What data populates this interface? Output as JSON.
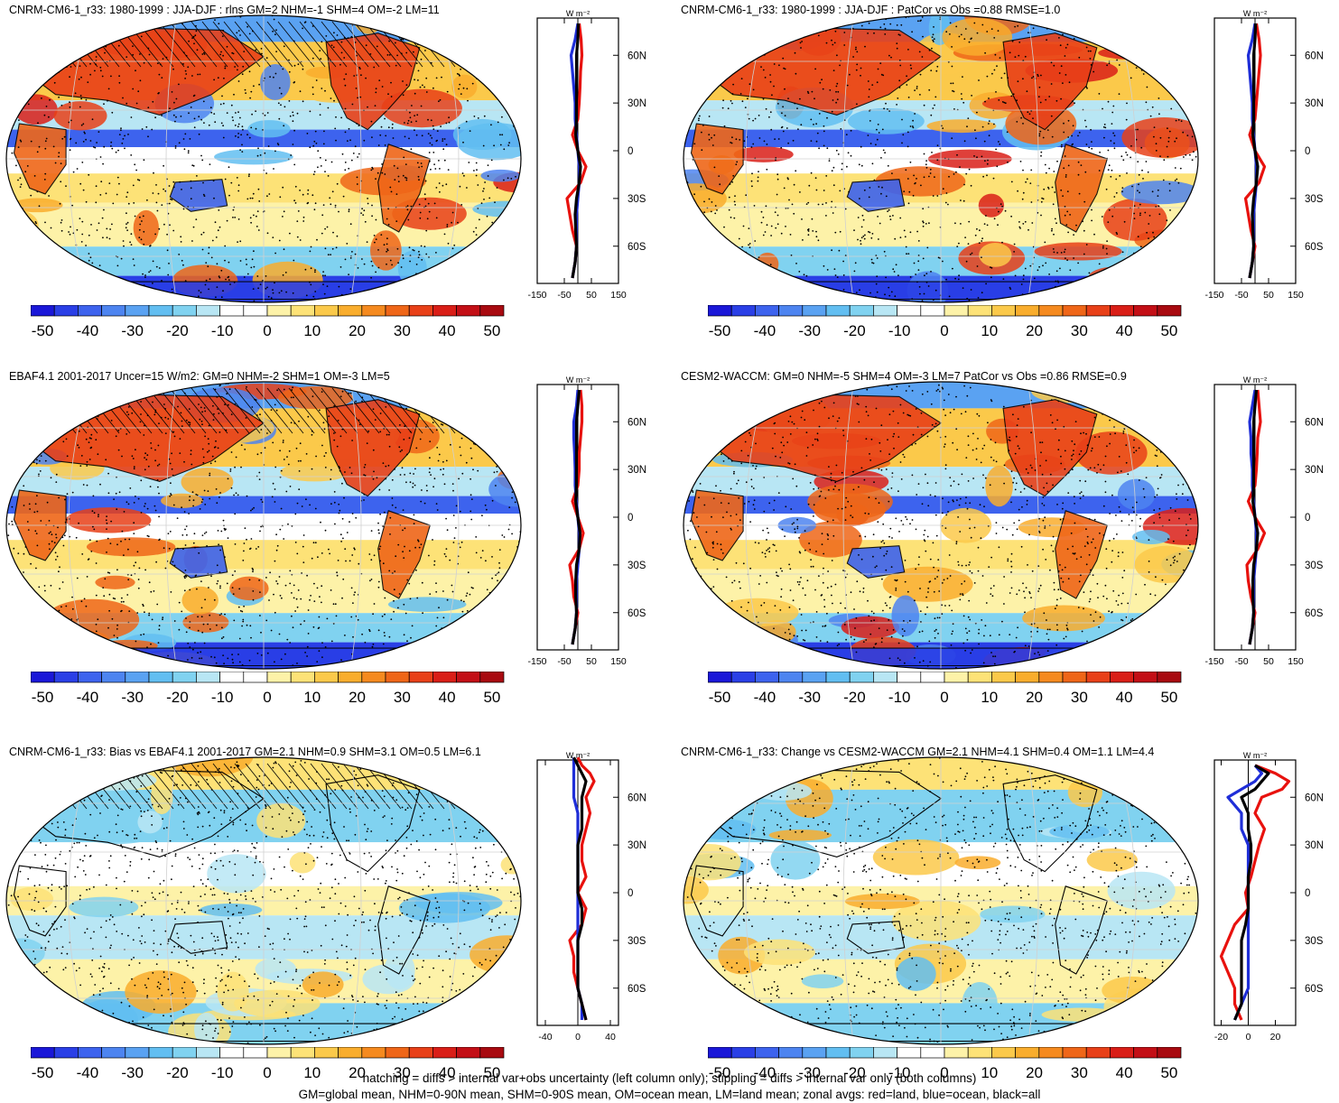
{
  "colorbar": {
    "ticks": [
      "-50",
      "-40",
      "-30",
      "-20",
      "-10",
      "0",
      "10",
      "20",
      "30",
      "40",
      "50"
    ],
    "colors": [
      "#1a17d8",
      "#2a3fe6",
      "#3d63ee",
      "#4d84f0",
      "#5aa2f2",
      "#62bef1",
      "#80d2f0",
      "#b8e6f4",
      "#ffffff",
      "#ffffff",
      "#fdf2a8",
      "#fde277",
      "#fbc94a",
      "#f9ad2d",
      "#f58a1f",
      "#ef6618",
      "#e84018",
      "#d91e17",
      "#c30f16",
      "#a80a10"
    ]
  },
  "footer": {
    "line1": "hatching = diffs > internal var+obs uncertainty (left column only); stippling = diffs > internal var only (both columns)",
    "line2": "GM=global mean, NHM=0-90N mean, SHM=0-90S mean, OM=ocean mean, LM=land mean; zonal avgs: red=land, blue=ocean, black=all"
  },
  "zonal_common": {
    "unit": "W m⁻²",
    "lat_labels": [
      "60N",
      "30N",
      "0",
      "30S",
      "60S"
    ]
  },
  "panels": [
    {
      "title": "CNRM-CM6-1_r33: 1980-1999 : JJA-DJF : rlns GM=2 NHM=-1 SHM=4 OM=-2 LM=11",
      "xticks": [
        "-150",
        "-50",
        "50",
        "150"
      ],
      "xlim": [
        -150,
        150
      ],
      "style": "warm",
      "hatch": true
    },
    {
      "title": "CNRM-CM6-1_r33: 1980-1999 : JJA-DJF : PatCor vs Obs =0.88 RMSE=1.0",
      "xticks": [
        "-150",
        "-50",
        "50",
        "150"
      ],
      "xlim": [
        -150,
        150
      ],
      "style": "warm",
      "hatch": false
    },
    {
      "title": "EBAF4.1 2001-2017 Uncer=15 W/m2: GM=0 NHM=-2 SHM=1 OM=-3 LM=5",
      "xticks": [
        "-150",
        "-50",
        "50",
        "150"
      ],
      "xlim": [
        -150,
        150
      ],
      "style": "warm",
      "hatch": true
    },
    {
      "title": "CESM2-WACCM: GM=0 NHM=-5 SHM=4 OM=-3 LM=7 PatCor vs Obs =0.86 RMSE=0.9",
      "xticks": [
        "-150",
        "-50",
        "50",
        "150"
      ],
      "xlim": [
        -150,
        150
      ],
      "style": "warm",
      "hatch": false
    },
    {
      "title": "CNRM-CM6-1_r33: Bias vs EBAF4.1 2001-2017 GM=2.1 NHM=0.9 SHM=3.1 OM=0.5 LM=6.1",
      "xticks": [
        "-40",
        "0",
        "40"
      ],
      "xlim": [
        -50,
        50
      ],
      "style": "mild",
      "hatch": true
    },
    {
      "title": "CNRM-CM6-1_r33: Change vs CESM2-WACCM GM=2.1 NHM=4.1 SHM=0.4 OM=1.1 LM=4.4",
      "xticks": [
        "-20",
        "0",
        "20"
      ],
      "xlim": [
        -25,
        35
      ],
      "style": "mild",
      "hatch": false
    }
  ],
  "chart_data": [
    {
      "type": "heatmap",
      "title": "CNRM-CM6-1_r33: 1980-1999 : JJA-DJF : rlns GM=2 NHM=-1 SHM=4 OM=-2 LM=11",
      "clim": [
        -55,
        55
      ],
      "zonal": {
        "lat": [
          80,
          70,
          60,
          50,
          40,
          30,
          20,
          10,
          0,
          -10,
          -20,
          -30,
          -40,
          -50,
          -60,
          -70,
          -80
        ],
        "land": [
          5,
          12,
          15,
          10,
          8,
          5,
          0,
          -20,
          0,
          30,
          10,
          -40,
          -30,
          -20,
          -5,
          -10,
          -20
        ],
        "ocean": [
          0,
          -10,
          -25,
          -20,
          -15,
          -10,
          -10,
          -5,
          0,
          5,
          5,
          0,
          -5,
          -5,
          -5,
          -10,
          -20
        ],
        "all": [
          2,
          0,
          -5,
          -5,
          -5,
          -5,
          -5,
          -8,
          0,
          10,
          5,
          -5,
          -10,
          -8,
          -5,
          -10,
          -20
        ]
      }
    },
    {
      "type": "heatmap",
      "title": "CNRM-CM6-1_r33: 1980-1999 : JJA-DJF : PatCor vs Obs =0.88 RMSE=1.0",
      "clim": [
        -55,
        55
      ],
      "zonal": {
        "lat": [
          80,
          70,
          60,
          50,
          40,
          30,
          20,
          10,
          0,
          -10,
          -20,
          -30,
          -40,
          -50,
          -60,
          -70,
          -80
        ],
        "land": [
          5,
          15,
          20,
          15,
          10,
          5,
          0,
          -20,
          0,
          35,
          15,
          -35,
          -25,
          -15,
          0,
          -10,
          -20
        ],
        "ocean": [
          0,
          -10,
          -25,
          -20,
          -15,
          -10,
          -10,
          -5,
          0,
          5,
          5,
          0,
          -5,
          -5,
          -5,
          -10,
          -20
        ],
        "all": [
          2,
          0,
          -5,
          -5,
          -5,
          -5,
          -5,
          -8,
          0,
          10,
          5,
          -5,
          -10,
          -8,
          -5,
          -10,
          -20
        ]
      }
    },
    {
      "type": "heatmap",
      "title": "EBAF4.1 2001-2017 Uncer=15 W/m2: GM=0 NHM=-2 SHM=1 OM=-3 LM=5",
      "clim": [
        -55,
        55
      ],
      "zonal": {
        "lat": [
          80,
          70,
          60,
          50,
          40,
          30,
          20,
          10,
          0,
          -10,
          -20,
          -30,
          -40,
          -50,
          -60,
          -70,
          -80
        ],
        "land": [
          10,
          15,
          15,
          10,
          5,
          5,
          0,
          -20,
          0,
          20,
          5,
          -30,
          -20,
          -15,
          0,
          -10,
          -20
        ],
        "ocean": [
          0,
          -5,
          -15,
          -15,
          -12,
          -10,
          -10,
          -5,
          0,
          5,
          5,
          0,
          -5,
          -5,
          -5,
          -10,
          -20
        ],
        "all": [
          5,
          0,
          -5,
          -5,
          -5,
          -5,
          -5,
          -8,
          0,
          8,
          5,
          -5,
          -8,
          -8,
          -5,
          -10,
          -20
        ]
      }
    },
    {
      "type": "heatmap",
      "title": "CESM2-WACCM: GM=0 NHM=-5 SHM=4 OM=-3 LM=7 PatCor vs Obs =0.86 RMSE=0.9",
      "clim": [
        -55,
        55
      ],
      "zonal": {
        "lat": [
          80,
          70,
          60,
          50,
          40,
          30,
          20,
          10,
          0,
          -10,
          -20,
          -30,
          -40,
          -50,
          -60,
          -70,
          -80
        ],
        "land": [
          10,
          15,
          20,
          10,
          8,
          5,
          0,
          -25,
          0,
          35,
          10,
          -30,
          -25,
          -15,
          0,
          -10,
          -20
        ],
        "ocean": [
          0,
          -10,
          -20,
          -15,
          -15,
          -10,
          -10,
          -5,
          0,
          5,
          5,
          0,
          -5,
          -5,
          -5,
          -10,
          -20
        ],
        "all": [
          5,
          0,
          -5,
          -5,
          -5,
          -5,
          -5,
          -8,
          0,
          10,
          5,
          -5,
          -8,
          -8,
          -5,
          -10,
          -20
        ]
      }
    },
    {
      "type": "heatmap",
      "title": "CNRM-CM6-1_r33: Bias vs EBAF4.1 2001-2017 GM=2.1 NHM=0.9 SHM=3.1 OM=0.5 LM=6.1",
      "clim": [
        -55,
        55
      ],
      "zonal": {
        "lat": [
          85,
          80,
          75,
          70,
          60,
          50,
          40,
          30,
          20,
          10,
          0,
          -10,
          -20,
          -30,
          -40,
          -50,
          -60,
          -70,
          -80
        ],
        "land": [
          0,
          5,
          15,
          20,
          10,
          15,
          10,
          5,
          5,
          10,
          0,
          10,
          5,
          -10,
          -5,
          -5,
          0,
          5,
          10
        ],
        "ocean": [
          -5,
          -5,
          -5,
          -5,
          -5,
          0,
          0,
          0,
          0,
          0,
          0,
          0,
          0,
          0,
          0,
          0,
          0,
          5,
          5
        ],
        "all": [
          -5,
          0,
          5,
          10,
          5,
          5,
          5,
          0,
          0,
          0,
          0,
          5,
          5,
          0,
          0,
          0,
          0,
          5,
          10
        ]
      }
    },
    {
      "type": "heatmap",
      "title": "CNRM-CM6-1_r33: Change vs CESM2-WACCM GM=2.1 NHM=4.1 SHM=0.4 OM=1.1 LM=4.4",
      "clim": [
        -55,
        55
      ],
      "zonal": {
        "lat": [
          80,
          75,
          70,
          65,
          60,
          50,
          40,
          30,
          20,
          10,
          0,
          -10,
          -20,
          -30,
          -40,
          -50,
          -60,
          -70,
          -80
        ],
        "land": [
          5,
          20,
          30,
          25,
          10,
          5,
          12,
          8,
          5,
          2,
          -2,
          0,
          -10,
          -15,
          -20,
          -15,
          -10,
          -10,
          -5
        ],
        "ocean": [
          5,
          10,
          5,
          -5,
          -15,
          -5,
          -5,
          0,
          0,
          0,
          0,
          0,
          0,
          0,
          0,
          0,
          0,
          -5,
          -10
        ],
        "all": [
          5,
          15,
          10,
          5,
          -5,
          0,
          0,
          2,
          2,
          0,
          0,
          0,
          -2,
          -5,
          -5,
          -5,
          -5,
          -5,
          -10
        ]
      }
    }
  ]
}
